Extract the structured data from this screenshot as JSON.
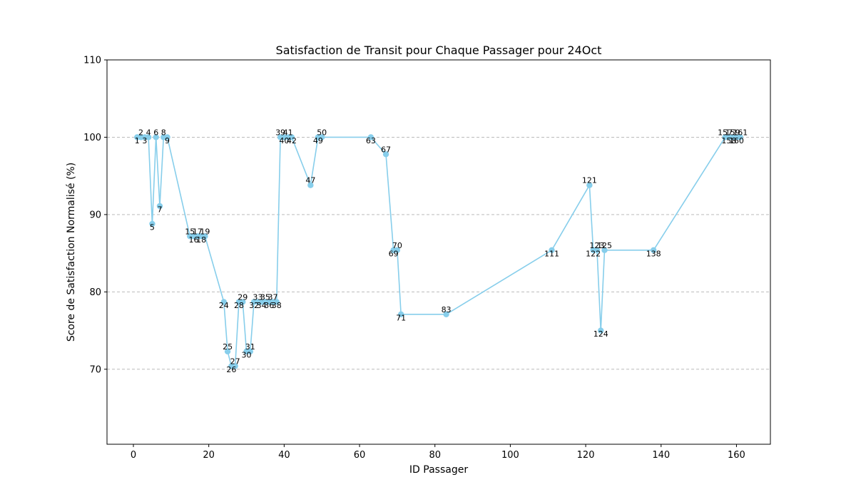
{
  "chart_data": {
    "type": "line",
    "title": "Satisfaction de Transit pour Chaque Passager pour 24Oct",
    "xlabel": "ID Passager",
    "ylabel": "Score de Satisfaction Normalisé (%)",
    "xlim": [
      -7,
      169
    ],
    "ylim": [
      60.3,
      110
    ],
    "xticks": [
      0,
      20,
      40,
      60,
      80,
      100,
      120,
      140,
      160
    ],
    "yticks": [
      70,
      80,
      90,
      100,
      110
    ],
    "grid": "y-dashed",
    "color": "#87ceeb",
    "points": [
      {
        "x": 1,
        "y": 100.0,
        "label": "1"
      },
      {
        "x": 2,
        "y": 100.0,
        "label": "2"
      },
      {
        "x": 3,
        "y": 100.0,
        "label": "3"
      },
      {
        "x": 4,
        "y": 100.0,
        "label": "4"
      },
      {
        "x": 5,
        "y": 88.8,
        "label": "5"
      },
      {
        "x": 6,
        "y": 100.0,
        "label": "6"
      },
      {
        "x": 7,
        "y": 91.1,
        "label": "7"
      },
      {
        "x": 8,
        "y": 100.0,
        "label": "8"
      },
      {
        "x": 9,
        "y": 100.0,
        "label": "9"
      },
      {
        "x": 15,
        "y": 87.2,
        "label": "15"
      },
      {
        "x": 16,
        "y": 87.2,
        "label": "16"
      },
      {
        "x": 17,
        "y": 87.2,
        "label": "17"
      },
      {
        "x": 18,
        "y": 87.2,
        "label": "18"
      },
      {
        "x": 19,
        "y": 87.2,
        "label": "19"
      },
      {
        "x": 24,
        "y": 78.7,
        "label": "24"
      },
      {
        "x": 25,
        "y": 72.3,
        "label": "25"
      },
      {
        "x": 26,
        "y": 70.4,
        "label": "26"
      },
      {
        "x": 27,
        "y": 70.4,
        "label": "27"
      },
      {
        "x": 28,
        "y": 78.7,
        "label": "28"
      },
      {
        "x": 29,
        "y": 78.7,
        "label": "29"
      },
      {
        "x": 30,
        "y": 72.3,
        "label": "30"
      },
      {
        "x": 31,
        "y": 72.3,
        "label": "31"
      },
      {
        "x": 32,
        "y": 78.7,
        "label": "32"
      },
      {
        "x": 33,
        "y": 78.7,
        "label": "33"
      },
      {
        "x": 34,
        "y": 78.7,
        "label": "34"
      },
      {
        "x": 35,
        "y": 78.7,
        "label": "35"
      },
      {
        "x": 36,
        "y": 78.7,
        "label": "36"
      },
      {
        "x": 37,
        "y": 78.7,
        "label": "37"
      },
      {
        "x": 38,
        "y": 78.7,
        "label": "38"
      },
      {
        "x": 39,
        "y": 100.0,
        "label": "39"
      },
      {
        "x": 40,
        "y": 100.0,
        "label": "40"
      },
      {
        "x": 41,
        "y": 100.0,
        "label": "41"
      },
      {
        "x": 42,
        "y": 100.0,
        "label": "42"
      },
      {
        "x": 47,
        "y": 93.8,
        "label": "47"
      },
      {
        "x": 49,
        "y": 100.0,
        "label": "49"
      },
      {
        "x": 50,
        "y": 100.0,
        "label": "50"
      },
      {
        "x": 63,
        "y": 100.0,
        "label": "63"
      },
      {
        "x": 67,
        "y": 97.8,
        "label": "67"
      },
      {
        "x": 69,
        "y": 85.4,
        "label": "69"
      },
      {
        "x": 70,
        "y": 85.4,
        "label": "70"
      },
      {
        "x": 71,
        "y": 77.1,
        "label": "71"
      },
      {
        "x": 83,
        "y": 77.1,
        "label": "83"
      },
      {
        "x": 111,
        "y": 85.4,
        "label": "111"
      },
      {
        "x": 121,
        "y": 93.8,
        "label": "121"
      },
      {
        "x": 122,
        "y": 85.4,
        "label": "122"
      },
      {
        "x": 123,
        "y": 85.4,
        "label": "123"
      },
      {
        "x": 124,
        "y": 75.0,
        "label": "124"
      },
      {
        "x": 125,
        "y": 85.4,
        "label": "125"
      },
      {
        "x": 138,
        "y": 85.4,
        "label": "138"
      },
      {
        "x": 157,
        "y": 100.0,
        "label": "157"
      },
      {
        "x": 158,
        "y": 100.0,
        "label": "158"
      },
      {
        "x": 159,
        "y": 100.0,
        "label": "159"
      },
      {
        "x": 160,
        "y": 100.0,
        "label": "160"
      },
      {
        "x": 161,
        "y": 100.0,
        "label": "161"
      }
    ]
  }
}
